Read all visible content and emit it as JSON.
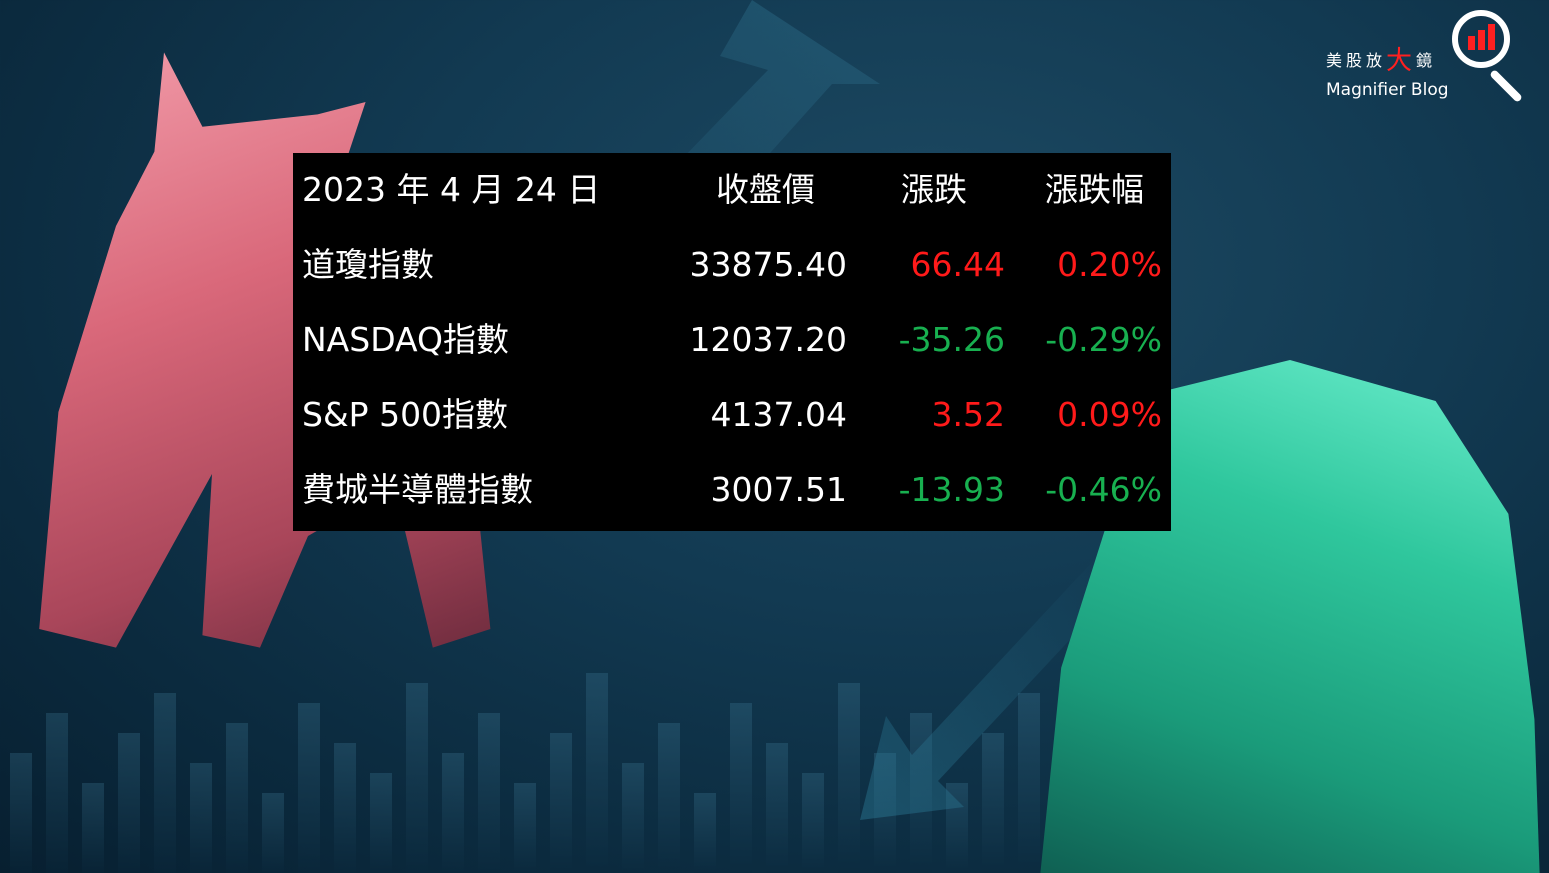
{
  "logo": {
    "name_cn_parts": [
      "美股放",
      "大",
      "鏡"
    ],
    "name_en": "Magnifier Blog",
    "icon": "magnifier-chart-icon"
  },
  "table": {
    "headers": [
      "2023 年 4 月 24 日",
      "收盤價",
      "漲跌",
      "漲跌幅"
    ],
    "rows": [
      {
        "name": "道瓊指數",
        "close": "33875.40",
        "change": "66.44",
        "pct": "0.20%",
        "dir": "up"
      },
      {
        "name": "NASDAQ指數",
        "close": "12037.20",
        "change": "-35.26",
        "pct": "-0.29%",
        "dir": "down"
      },
      {
        "name": "S&P 500指數",
        "close": "4137.04",
        "change": "3.52",
        "pct": "0.09%",
        "dir": "up"
      },
      {
        "name": "費城半導體指數",
        "close": "3007.51",
        "change": "-13.93",
        "pct": "-0.46%",
        "dir": "down"
      }
    ]
  },
  "colors": {
    "up": "#ff1a1a",
    "down": "#18b050"
  }
}
